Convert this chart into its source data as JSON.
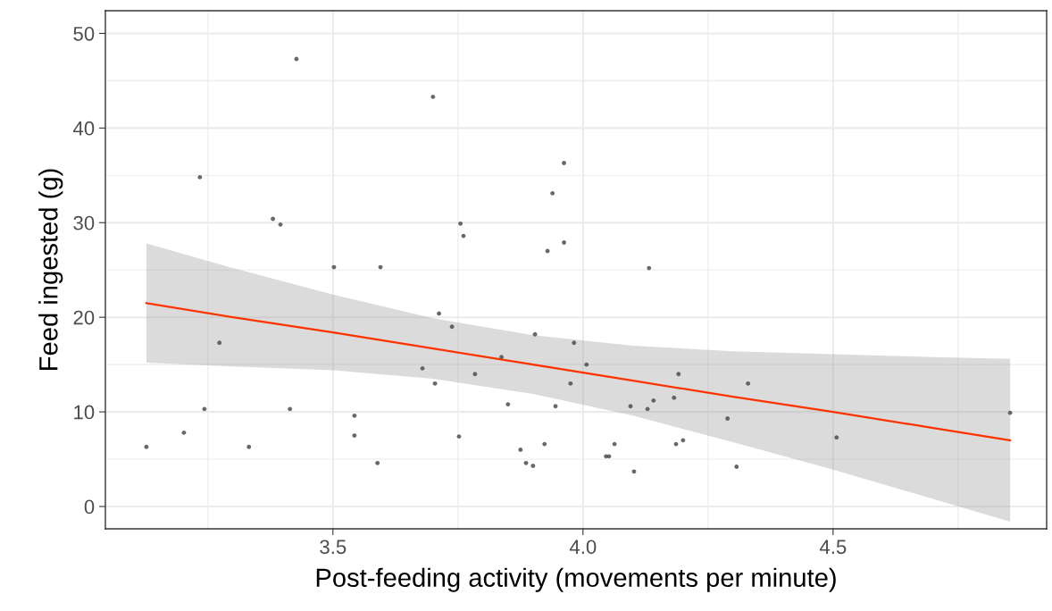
{
  "chart_data": {
    "type": "scatter",
    "xlabel": "Post-feeding activity (movements per minute)",
    "ylabel": "Feed ingested (g)",
    "xlim": [
      3.045,
      4.927
    ],
    "ylim": [
      -2.36,
      52.4
    ],
    "xticks": [
      {
        "value": 3.5,
        "label": "3.5"
      },
      {
        "value": 4.0,
        "label": "4.0"
      },
      {
        "value": 4.5,
        "label": "4.5"
      }
    ],
    "yticks": [
      0,
      10,
      20,
      30,
      40,
      50
    ],
    "grid": true,
    "marker": "circle",
    "series": [
      {
        "color": "#4d4d4d",
        "x": [
          3.127,
          3.202,
          3.234,
          3.243,
          3.273,
          3.332,
          3.38,
          3.395,
          3.414,
          3.427,
          3.502,
          3.543,
          3.543,
          3.589,
          3.595,
          3.679,
          3.7,
          3.704,
          3.712,
          3.738,
          3.752,
          3.755,
          3.761,
          3.784,
          3.837,
          3.85,
          3.875,
          3.886,
          3.9,
          3.904,
          3.923,
          3.929,
          3.939,
          3.945,
          3.962,
          3.962,
          3.975,
          3.982,
          4.007,
          4.046,
          4.052,
          4.063,
          4.095,
          4.102,
          4.129,
          4.132,
          4.141,
          4.182,
          4.186,
          4.191,
          4.2,
          4.289,
          4.307,
          4.33,
          4.507,
          4.854
        ],
        "values": [
          6.3,
          7.8,
          34.8,
          10.3,
          17.3,
          6.3,
          30.4,
          29.8,
          10.3,
          47.3,
          25.3,
          9.6,
          7.5,
          4.6,
          25.3,
          14.6,
          43.3,
          13.0,
          20.4,
          19.0,
          7.4,
          29.9,
          28.6,
          14.0,
          15.8,
          10.8,
          6.0,
          4.6,
          4.3,
          18.2,
          6.6,
          27.0,
          33.1,
          10.6,
          27.9,
          36.3,
          13.0,
          17.3,
          15.0,
          5.3,
          5.3,
          6.6,
          10.6,
          3.7,
          10.3,
          25.2,
          11.2,
          11.5,
          6.6,
          14.0,
          7.0,
          9.3,
          4.2,
          13.0,
          7.3,
          9.9
        ]
      },
      {
        "type": "line",
        "color": "#ff3300",
        "marker": "none",
        "x": [
          3.127,
          3.3,
          3.5,
          3.7,
          3.9,
          4.1,
          4.3,
          4.5,
          4.7,
          4.854
        ],
        "values": [
          21.5,
          20.0,
          18.4,
          16.7,
          15.0,
          13.3,
          11.6,
          10.0,
          8.3,
          7.0
        ],
        "lower": [
          15.2,
          14.8,
          14.4,
          13.5,
          11.9,
          9.6,
          6.8,
          3.9,
          0.8,
          -1.6
        ],
        "upper": [
          27.8,
          25.2,
          22.4,
          19.9,
          18.1,
          17.0,
          16.4,
          16.1,
          15.8,
          15.6
        ]
      }
    ]
  }
}
